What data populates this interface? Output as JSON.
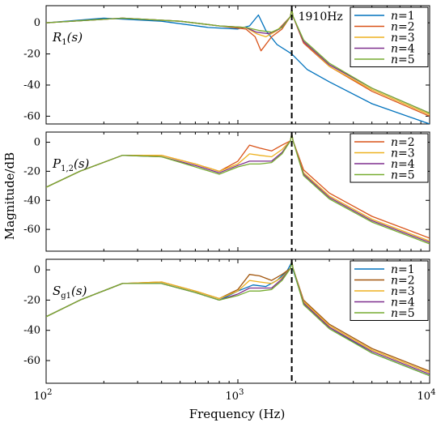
{
  "chart_data": [
    {
      "type": "line",
      "panel_label": {
        "main": "R",
        "sub": "1",
        "arg": "(s)"
      },
      "x_scale": "log",
      "xlim": [
        100,
        10000
      ],
      "ylim": [
        -65,
        11
      ],
      "yticks": [
        0,
        -20,
        -40,
        -60
      ],
      "annotation": "1910Hz",
      "vline_x": 1910,
      "legend_position": "top-right",
      "series": [
        {
          "name": "n=1",
          "color": "#0072BD",
          "x": [
            100,
            200,
            400,
            700,
            1000,
            1150,
            1280,
            1400,
            1600,
            1910,
            2300,
            3000,
            5000,
            10000
          ],
          "y": [
            0,
            3,
            1,
            -3,
            -4,
            -2,
            5,
            -5,
            -14,
            -20,
            -30,
            -38,
            -52,
            -65
          ]
        },
        {
          "name": "n=2",
          "color": "#D95319",
          "x": [
            100,
            250,
            500,
            800,
            1100,
            1230,
            1320,
            1500,
            1700,
            1880,
            1910,
            1940,
            2200,
            3000,
            5000,
            10000
          ],
          "y": [
            0,
            3,
            1,
            -2,
            -4,
            -9,
            -18,
            -9,
            -4,
            4,
            9,
            4,
            -13,
            -28,
            -44,
            -60
          ]
        },
        {
          "name": "n=3",
          "color": "#EDB120",
          "x": [
            100,
            250,
            500,
            800,
            1100,
            1250,
            1400,
            1600,
            1880,
            1910,
            1940,
            2200,
            3000,
            5000,
            10000
          ],
          "y": [
            0,
            3,
            1,
            -2,
            -3,
            -7,
            -9,
            -5,
            4,
            9,
            4,
            -12,
            -28,
            -43,
            -59
          ]
        },
        {
          "name": "n=4",
          "color": "#7E2F8E",
          "x": [
            100,
            250,
            500,
            800,
            1100,
            1250,
            1450,
            1650,
            1880,
            1910,
            1940,
            2200,
            3000,
            5000,
            10000
          ],
          "y": [
            0,
            3,
            1,
            -2,
            -3,
            -6,
            -7,
            -4,
            4,
            9,
            4,
            -12,
            -27,
            -42,
            -58
          ]
        },
        {
          "name": "n=5",
          "color": "#77AC30",
          "x": [
            100,
            250,
            500,
            800,
            1100,
            1300,
            1500,
            1700,
            1880,
            1910,
            1940,
            2200,
            3000,
            5000,
            10000
          ],
          "y": [
            0,
            3,
            1,
            -2,
            -3,
            -5,
            -6,
            -3,
            4,
            9,
            4,
            -11,
            -26,
            -42,
            -58
          ]
        }
      ]
    },
    {
      "type": "line",
      "panel_label": {
        "main": "P",
        "sub": "1,2",
        "arg": "(s)"
      },
      "x_scale": "log",
      "xlim": [
        100,
        10000
      ],
      "ylim": [
        -75,
        7
      ],
      "yticks": [
        0,
        -20,
        -40,
        -60
      ],
      "vline_x": 1910,
      "legend_position": "top-right",
      "series": [
        {
          "name": "n=2",
          "color": "#D95319",
          "x": [
            100,
            150,
            250,
            400,
            600,
            800,
            1000,
            1150,
            1300,
            1500,
            1700,
            1880,
            1910,
            1940,
            2200,
            3000,
            5000,
            10000
          ],
          "y": [
            -31,
            -20,
            -9,
            -9,
            -15,
            -20,
            -13,
            -2,
            -4,
            -6,
            -2,
            1,
            6,
            1,
            -19,
            -35,
            -51,
            -66
          ]
        },
        {
          "name": "n=3",
          "color": "#EDB120",
          "x": [
            100,
            150,
            250,
            400,
            600,
            800,
            1000,
            1150,
            1300,
            1500,
            1700,
            1880,
            1910,
            1940,
            2200,
            3000,
            5000,
            10000
          ],
          "y": [
            -31,
            -20,
            -9,
            -9,
            -15,
            -20,
            -15,
            -8,
            -9,
            -10,
            -5,
            1,
            6,
            1,
            -21,
            -37,
            -53,
            -68
          ]
        },
        {
          "name": "n=4",
          "color": "#7E2F8E",
          "x": [
            100,
            150,
            250,
            400,
            600,
            800,
            1000,
            1150,
            1300,
            1500,
            1700,
            1880,
            1910,
            1940,
            2200,
            3000,
            5000,
            10000
          ],
          "y": [
            -31,
            -20,
            -9,
            -10,
            -16,
            -21,
            -16,
            -13,
            -13,
            -13,
            -7,
            1,
            6,
            1,
            -22,
            -38,
            -54,
            -69
          ]
        },
        {
          "name": "n=5",
          "color": "#77AC30",
          "x": [
            100,
            150,
            250,
            400,
            600,
            800,
            1000,
            1150,
            1300,
            1500,
            1700,
            1880,
            1910,
            1940,
            2200,
            3000,
            5000,
            10000
          ],
          "y": [
            -31,
            -20,
            -9,
            -10,
            -17,
            -22,
            -17,
            -15,
            -15,
            -14,
            -8,
            1,
            6,
            1,
            -23,
            -39,
            -55,
            -70
          ]
        }
      ]
    },
    {
      "type": "line",
      "panel_label": {
        "main": "S",
        "sub": "g1",
        "arg": "(s)"
      },
      "x_scale": "log",
      "xlim": [
        100,
        10000
      ],
      "ylim": [
        -75,
        7
      ],
      "yticks": [
        0,
        -20,
        -40,
        -60
      ],
      "vline_x": 1910,
      "legend_position": "top-right",
      "series": [
        {
          "name": "n=1",
          "color": "#0072BD",
          "x": [
            100,
            150,
            250,
            400,
            600,
            800,
            1000,
            1200,
            1400,
            1600,
            1800,
            1910,
            1940,
            2200,
            3000,
            5000,
            10000
          ],
          "y": [
            -31,
            -20,
            -9,
            -9,
            -15,
            -20,
            -14,
            -10,
            -11,
            -7,
            -1,
            5,
            0,
            -22,
            -38,
            -55,
            -70
          ]
        },
        {
          "name": "n=2",
          "color": "#A2570F",
          "x": [
            100,
            150,
            250,
            400,
            600,
            800,
            1000,
            1150,
            1300,
            1500,
            1700,
            1880,
            1910,
            1940,
            2200,
            3000,
            5000,
            10000
          ],
          "y": [
            -31,
            -20,
            -9,
            -8,
            -14,
            -19,
            -13,
            -3,
            -4,
            -7,
            -3,
            1,
            6,
            1,
            -20,
            -36,
            -52,
            -67
          ]
        },
        {
          "name": "n=3",
          "color": "#EDB120",
          "x": [
            100,
            150,
            250,
            400,
            600,
            800,
            1000,
            1150,
            1300,
            1500,
            1700,
            1880,
            1910,
            1940,
            2200,
            3000,
            5000,
            10000
          ],
          "y": [
            -31,
            -20,
            -9,
            -8,
            -14,
            -19,
            -14,
            -7,
            -8,
            -9,
            -5,
            1,
            6,
            1,
            -21,
            -37,
            -53,
            -68
          ]
        },
        {
          "name": "n=4",
          "color": "#7E2F8E",
          "x": [
            100,
            150,
            250,
            400,
            600,
            800,
            1000,
            1150,
            1300,
            1500,
            1700,
            1880,
            1910,
            1940,
            2200,
            3000,
            5000,
            10000
          ],
          "y": [
            -31,
            -20,
            -9,
            -9,
            -15,
            -20,
            -16,
            -12,
            -12,
            -12,
            -6,
            1,
            6,
            1,
            -22,
            -38,
            -54,
            -69
          ]
        },
        {
          "name": "n=5",
          "color": "#77AC30",
          "x": [
            100,
            150,
            250,
            400,
            600,
            800,
            1000,
            1150,
            1300,
            1500,
            1700,
            1880,
            1910,
            1940,
            2200,
            3000,
            5000,
            10000
          ],
          "y": [
            -31,
            -20,
            -9,
            -9,
            -15,
            -20,
            -17,
            -14,
            -14,
            -13,
            -7,
            1,
            6,
            1,
            -23,
            -39,
            -55,
            -70
          ]
        }
      ]
    }
  ],
  "axes": {
    "xlabel": "Frequency  (Hz)",
    "ylabel": "Magnitude/dB",
    "xtick_labels": [
      {
        "base": "10",
        "exp": "2",
        "value": 100
      },
      {
        "base": "10",
        "exp": "3",
        "value": 1000
      },
      {
        "base": "10",
        "exp": "4",
        "value": 10000
      }
    ]
  }
}
